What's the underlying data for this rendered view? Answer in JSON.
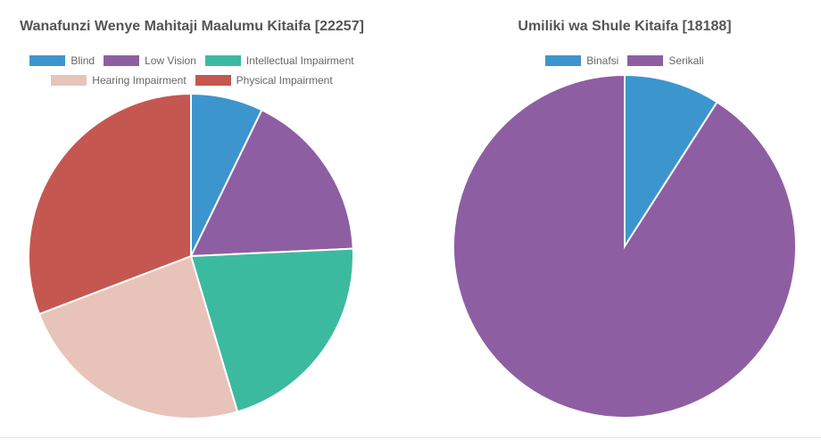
{
  "chart_data": [
    {
      "type": "pie",
      "title": "Wanafunzi Wenye Mahitaji Maalumu Kitaifa [22257]",
      "categories": [
        "Blind",
        "Low Vision",
        "Intellectual Impairment",
        "Hearing Impairment",
        "Physical Impairment"
      ],
      "values": [
        1600,
        3800,
        4700,
        5300,
        6857
      ],
      "colors": [
        "#3d95ce",
        "#8e5ea2",
        "#3cba9f",
        "#e8c3b9",
        "#c45850"
      ],
      "legend": "top",
      "legend_rows": [
        [
          0,
          1,
          2
        ],
        [
          3,
          4
        ]
      ]
    },
    {
      "type": "pie",
      "title": "Umiliki wa Shule Kitaifa [18188]",
      "categories": [
        "Binafsi",
        "Serikali"
      ],
      "values": [
        1650,
        16538
      ],
      "colors": [
        "#3d95ce",
        "#8e5ea2"
      ],
      "legend": "top",
      "legend_rows": [
        [
          0,
          1
        ]
      ]
    }
  ]
}
